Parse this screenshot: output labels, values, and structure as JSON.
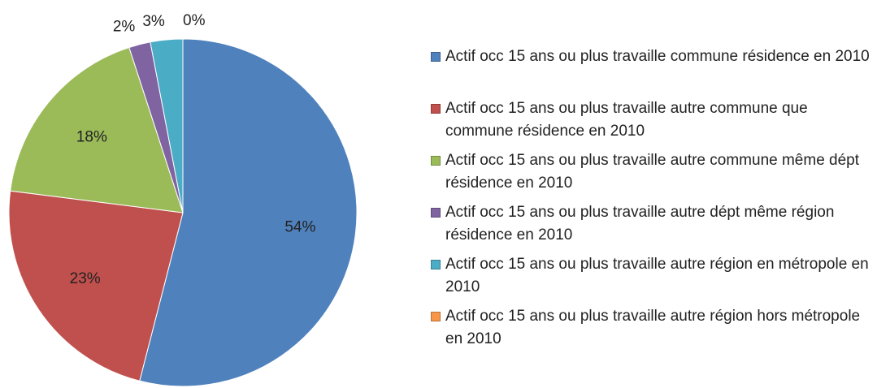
{
  "chart_data": {
    "type": "pie",
    "categories": [
      "Actif occ 15 ans ou plus travaille commune résidence en 2010",
      "Actif occ 15 ans ou plus travaille autre commune que commune résidence en 2010",
      "Actif occ 15 ans ou plus travaille autre commune même dépt résidence en 2010",
      "Actif occ 15 ans ou plus travaille autre dépt même région résidence en 2010",
      "Actif occ 15 ans ou plus travaille autre région en métropole en 2010",
      "Actif occ 15 ans ou plus travaille autre région hors métropole en 2010"
    ],
    "values": [
      54,
      23,
      18,
      2,
      3,
      0
    ],
    "value_labels": [
      "54%",
      "23%",
      "18%",
      "2%",
      "3%",
      "0%"
    ],
    "colors": [
      "#4f81bd",
      "#c0504d",
      "#9bbb59",
      "#8064a2",
      "#4bacc6",
      "#f79646"
    ],
    "legend": "right"
  }
}
